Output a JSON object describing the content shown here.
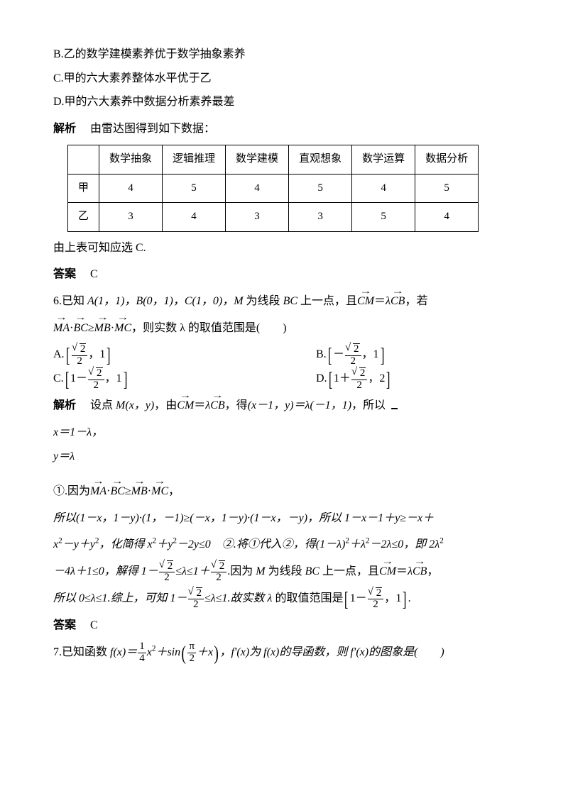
{
  "options_top": {
    "B": "B.乙的数学建模素养优于数学抽象素养",
    "C": "C.甲的六大素养整体水平优于乙",
    "D": "D.甲的六大素养中数据分析素养最差"
  },
  "analysis1_label": "解析",
  "analysis1_text": "由雷达图得到如下数据：",
  "table": {
    "columns": [
      "",
      "数学抽象",
      "逻辑推理",
      "数学建模",
      "直观想象",
      "数学运算",
      "数据分析"
    ],
    "rows": [
      [
        "甲",
        "4",
        "5",
        "4",
        "5",
        "4",
        "5"
      ],
      [
        "乙",
        "3",
        "4",
        "3",
        "3",
        "5",
        "4"
      ]
    ],
    "col_widths": [
      "40px",
      "auto",
      "auto",
      "auto",
      "auto",
      "auto",
      "auto"
    ],
    "border_color": "#000000",
    "cell_padding": "4px 14px",
    "font_size": 15,
    "align": "center"
  },
  "conclusion1": "由上表可知应选 C.",
  "answer_label": "答案",
  "answer1": "C",
  "q6": {
    "stem_a": "6.已知 ",
    "pts": "A(1，1)，B(0，1)，C(1，0)，M",
    "stem_b": " 为线段 ",
    "pts_b": "BC",
    "stem_c": " 上一点，且",
    "cond_tail": "，若",
    "cond2_tail": "，则实数 λ 的取值范围是(　　)",
    "optA_pre": "A.",
    "optB_pre": "B.",
    "optC_pre": "C.",
    "optD_pre": "D.",
    "sqrt2": "2",
    "one": "1",
    "two": "2"
  },
  "analysis2_label": "解析",
  "analysis2": {
    "p1a": "设点 ",
    "p1b": "M(x，y)",
    "p1c": "，由",
    "p1d": "，得",
    "p1e": "(x－1，y)＝λ(－1，1)",
    "p1f": "，所以",
    "case1": "x＝1－λ，",
    "case2": "y＝λ",
    "p2a": "①.因为",
    "p2b": "，",
    "p3": "所以(1－x，1－y)·(1，－1)≥(－x，1－y)·(1－x，－y)，所以 1－x－1＋y≥－x＋",
    "p4a": "x",
    "p4b": "－y＋y",
    "p4c": "，化简得 x",
    "p4d": "＋y",
    "p4e": "－2y≤0　②.将①代入②，得(1－λ)",
    "p4f": "＋λ",
    "p4g": "－2λ≤0，即 2λ",
    "p5a": "－4λ＋1≤0，解得 1－",
    "p5b": "≤λ≤1＋",
    "p5c": ".因为 ",
    "p5d": "M",
    "p5e": " 为线段 ",
    "p5f": "BC",
    "p5g": " 上一点，且",
    "p5h": "，",
    "p6a": "所以 0≤λ≤1.综上，可知 1－",
    "p6b": "≤λ≤1.故实数 ",
    "p6c": "λ",
    "p6d": " 的取值范围是"
  },
  "answer2": "C",
  "q7": {
    "stem_a": "7.已知函数 ",
    "stem_b": "f(x)＝",
    "stem_c": "x",
    "stem_d": "＋sin",
    "stem_e": "＋x",
    "stem_f": "，f′(x)为 f(x)的导函数，则 f′(x)的图象是(　　)",
    "frac14_n": "1",
    "frac14_d": "4",
    "pi2_n": "π",
    "pi2_d": "2"
  },
  "colors": {
    "text": "#000000",
    "background": "#ffffff",
    "table_border": "#000000"
  },
  "typography": {
    "body_fontsize_pt": 12,
    "line_height": 2.1,
    "font_family": "SimSun / Times New Roman (math)"
  }
}
